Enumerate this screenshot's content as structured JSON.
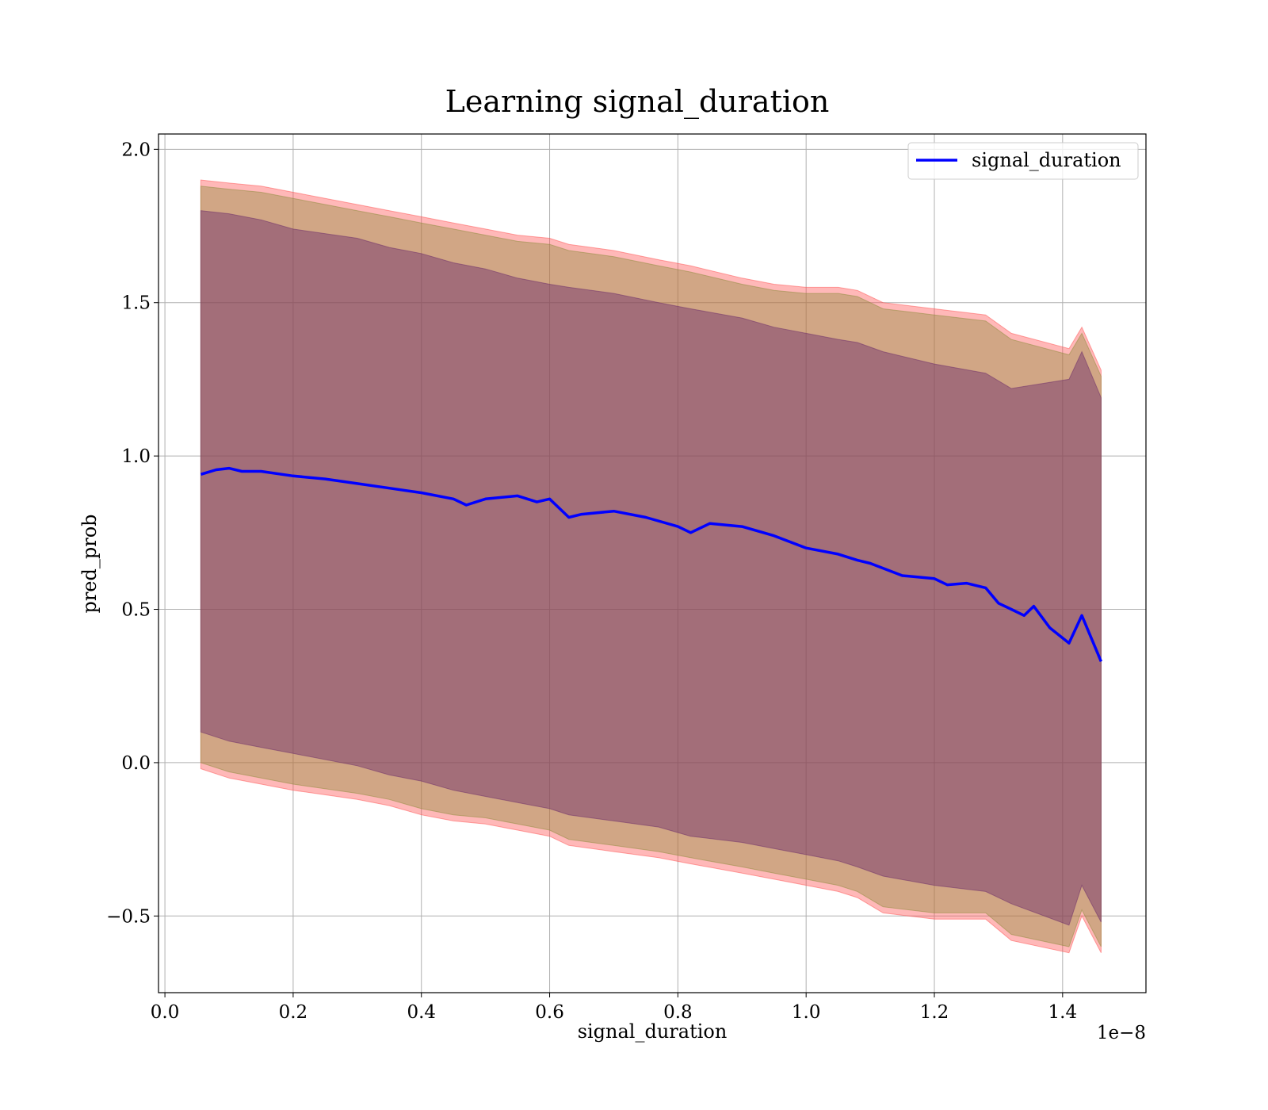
{
  "chart_data": {
    "type": "line",
    "title": "Learning signal_duration",
    "xlabel": "signal_duration",
    "ylabel": "pred_prob",
    "x_offset_label": "1e−8",
    "xlim": [
      -0.01,
      1.53
    ],
    "ylim": [
      -0.75,
      2.05
    ],
    "grid": true,
    "legend_position": "top-right",
    "x_ticks": [
      0.0,
      0.2,
      0.4,
      0.6,
      0.8,
      1.0,
      1.2,
      1.4
    ],
    "x_tick_labels": [
      "0.0",
      "0.2",
      "0.4",
      "0.6",
      "0.8",
      "1.0",
      "1.2",
      "1.4"
    ],
    "y_ticks": [
      -0.5,
      0.0,
      0.5,
      1.0,
      1.5,
      2.0
    ],
    "y_tick_labels": [
      "−0.5",
      "0.0",
      "0.5",
      "1.0",
      "1.5",
      "2.0"
    ],
    "series": [
      {
        "name": "signal_duration",
        "color": "#0000ff",
        "x": [
          0.056,
          0.08,
          0.1,
          0.12,
          0.15,
          0.2,
          0.25,
          0.3,
          0.35,
          0.4,
          0.45,
          0.47,
          0.5,
          0.55,
          0.58,
          0.6,
          0.63,
          0.65,
          0.7,
          0.75,
          0.8,
          0.82,
          0.85,
          0.9,
          0.95,
          1.0,
          1.05,
          1.08,
          1.1,
          1.15,
          1.2,
          1.22,
          1.25,
          1.28,
          1.3,
          1.32,
          1.34,
          1.355,
          1.38,
          1.41,
          1.43,
          1.46
        ],
        "values": [
          0.94,
          0.955,
          0.96,
          0.95,
          0.95,
          0.935,
          0.925,
          0.91,
          0.895,
          0.88,
          0.86,
          0.84,
          0.86,
          0.87,
          0.85,
          0.86,
          0.8,
          0.81,
          0.82,
          0.8,
          0.77,
          0.75,
          0.78,
          0.77,
          0.74,
          0.7,
          0.68,
          0.66,
          0.65,
          0.61,
          0.6,
          0.58,
          0.585,
          0.57,
          0.52,
          0.5,
          0.48,
          0.51,
          0.44,
          0.39,
          0.48,
          0.33
        ]
      }
    ],
    "bands": [
      {
        "color": "#ff4d4d",
        "opacity": 0.4,
        "upper": [
          1.9,
          1.89,
          1.88,
          1.86,
          1.82,
          1.8,
          1.78,
          1.76,
          1.74,
          1.72,
          1.71,
          1.69,
          1.67,
          1.64,
          1.62,
          1.58,
          1.56,
          1.55,
          1.55,
          1.54,
          1.5,
          1.48,
          1.46,
          1.4,
          1.35,
          1.42,
          1.28
        ],
        "lower": [
          -0.02,
          -0.05,
          -0.07,
          -0.09,
          -0.12,
          -0.14,
          -0.17,
          -0.19,
          -0.2,
          -0.22,
          -0.24,
          -0.27,
          -0.29,
          -0.31,
          -0.33,
          -0.36,
          -0.38,
          -0.4,
          -0.42,
          -0.44,
          -0.49,
          -0.51,
          -0.51,
          -0.58,
          -0.62,
          -0.5,
          -0.62
        ]
      },
      {
        "color": "#8b8b3a",
        "opacity": 0.4,
        "upper": [
          1.88,
          1.87,
          1.86,
          1.84,
          1.8,
          1.78,
          1.76,
          1.74,
          1.72,
          1.7,
          1.69,
          1.67,
          1.65,
          1.62,
          1.6,
          1.56,
          1.54,
          1.53,
          1.53,
          1.52,
          1.48,
          1.46,
          1.44,
          1.38,
          1.33,
          1.4,
          1.26
        ],
        "lower": [
          0.0,
          -0.03,
          -0.05,
          -0.07,
          -0.1,
          -0.12,
          -0.15,
          -0.17,
          -0.18,
          -0.2,
          -0.22,
          -0.25,
          -0.27,
          -0.29,
          -0.31,
          -0.34,
          -0.36,
          -0.38,
          -0.4,
          -0.42,
          -0.47,
          -0.49,
          -0.49,
          -0.56,
          -0.6,
          -0.48,
          -0.6
        ]
      },
      {
        "color": "#6a2a6a",
        "opacity": 0.45,
        "upper": [
          1.8,
          1.79,
          1.77,
          1.74,
          1.71,
          1.68,
          1.66,
          1.63,
          1.61,
          1.58,
          1.56,
          1.55,
          1.53,
          1.5,
          1.48,
          1.45,
          1.42,
          1.4,
          1.38,
          1.37,
          1.34,
          1.3,
          1.27,
          1.22,
          1.25,
          1.34,
          1.19
        ],
        "lower": [
          0.1,
          0.07,
          0.05,
          0.03,
          -0.01,
          -0.04,
          -0.06,
          -0.09,
          -0.11,
          -0.13,
          -0.15,
          -0.17,
          -0.19,
          -0.21,
          -0.24,
          -0.26,
          -0.28,
          -0.3,
          -0.32,
          -0.34,
          -0.37,
          -0.4,
          -0.42,
          -0.46,
          -0.53,
          -0.4,
          -0.52
        ]
      }
    ],
    "band_x": [
      0.056,
      0.1,
      0.15,
      0.2,
      0.3,
      0.35,
      0.4,
      0.45,
      0.5,
      0.55,
      0.6,
      0.63,
      0.7,
      0.77,
      0.82,
      0.9,
      0.95,
      1.0,
      1.05,
      1.08,
      1.12,
      1.2,
      1.28,
      1.32,
      1.41,
      1.43,
      1.46
    ]
  }
}
